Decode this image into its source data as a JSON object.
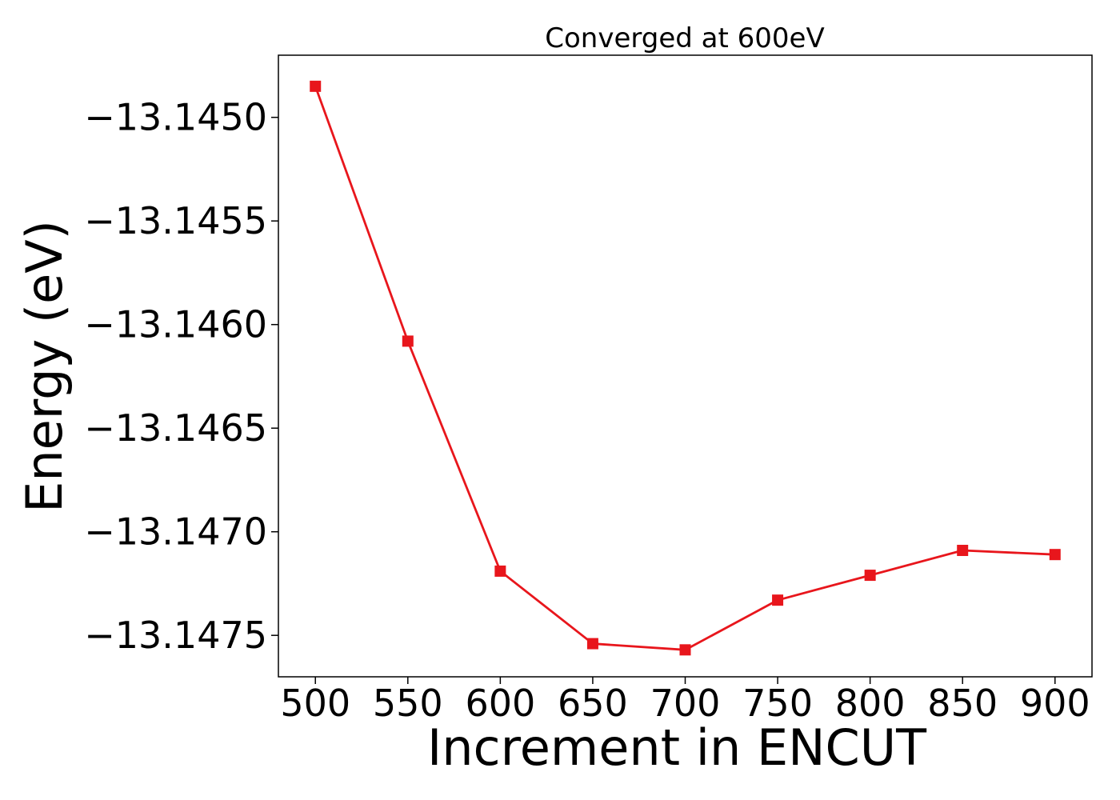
{
  "chart_data": {
    "type": "line",
    "title": "Converged at 600eV",
    "xlabel": "Increment in ENCUT",
    "ylabel": "Energy (eV)",
    "x": [
      500,
      550,
      600,
      650,
      700,
      750,
      800,
      850,
      900
    ],
    "series": [
      {
        "values": [
          -13.14485,
          -13.14608,
          -13.14719,
          -13.14754,
          -13.14757,
          -13.14733,
          -13.14721,
          -13.14709,
          -13.14711
        ],
        "color": "#e8161c",
        "marker": "square"
      }
    ],
    "xticks": [
      500,
      550,
      600,
      650,
      700,
      750,
      800,
      850,
      900
    ],
    "xtick_labels": [
      "500",
      "550",
      "600",
      "650",
      "700",
      "750",
      "800",
      "850",
      "900"
    ],
    "yticks": [
      -13.145,
      -13.1455,
      -13.146,
      -13.1465,
      -13.147,
      -13.1475
    ],
    "ytick_labels": [
      "−13.1450",
      "−13.1455",
      "−13.1460",
      "−13.1465",
      "−13.1470",
      "−13.1475"
    ],
    "xlim": [
      480,
      920
    ],
    "ylim": [
      -13.1477,
      -13.1447
    ],
    "grid": false,
    "legend": false
  }
}
